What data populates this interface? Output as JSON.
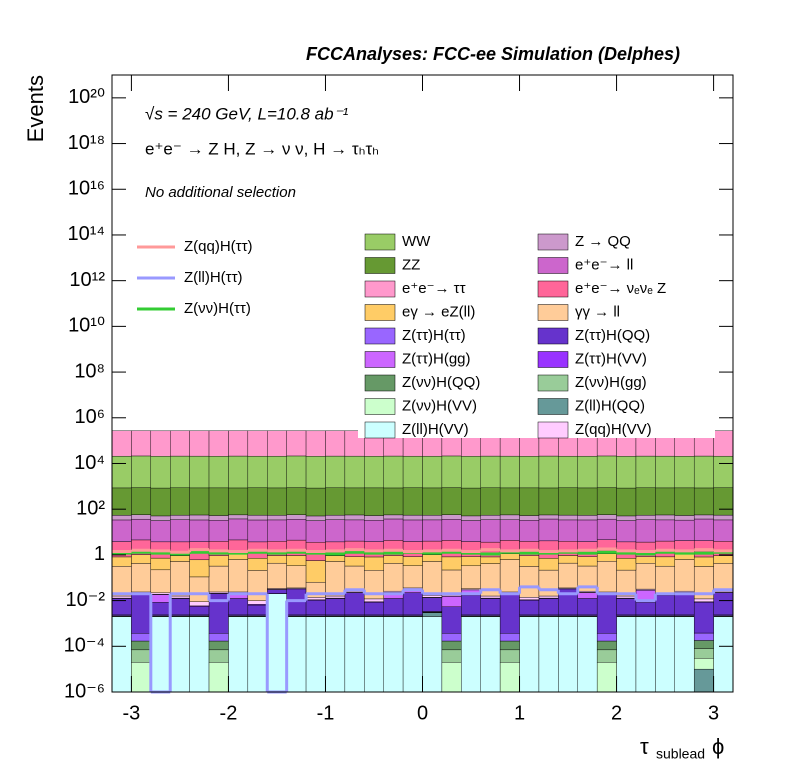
{
  "chart_data": {
    "type": "histogram",
    "title": "FCCAnalyses: FCC-ee Simulation (Delphes)",
    "annotations": [
      "√s = 240 GeV, L=10.8 ab⁻¹",
      "e⁺e⁻ → Z H, Z → ν ν, H → τₕτₕ",
      "No additional selection"
    ],
    "y_label": "Events",
    "x_label": [
      "τ",
      "sublead",
      "ϕ"
    ],
    "log_y": true,
    "stacked": true,
    "xlim": [
      -3.2,
      3.2
    ],
    "ylim": [
      1e-06,
      1e+21
    ],
    "xticks": [
      -3,
      -2,
      -1,
      0,
      1,
      2,
      3
    ],
    "yticks": [
      {
        "value": 1e-06,
        "label": "10⁻⁶"
      },
      {
        "value": 0.0001,
        "label": "10⁻⁴"
      },
      {
        "value": 0.01,
        "label": "10⁻²"
      },
      1,
      {
        "value": 100,
        "label": "10²"
      },
      {
        "value": 10000.0,
        "label": "10⁴"
      },
      {
        "value": 1000000.0,
        "label": "10⁶"
      },
      {
        "value": 100000000.0,
        "label": "10⁸"
      },
      {
        "value": 10000000000.0,
        "label": "10¹⁰"
      },
      {
        "value": 1000000000000.0,
        "label": "10¹²"
      },
      {
        "value": 100000000000000.0,
        "label": "10¹⁴"
      },
      {
        "value": 1e+16,
        "label": "10¹⁶"
      },
      {
        "value": 1e+18,
        "label": "10¹⁸"
      },
      {
        "value": 1e+20,
        "label": "10²⁰"
      }
    ],
    "bins": [
      -3.2,
      -3,
      -2.8,
      -2.6,
      -2.4,
      -2.2,
      -2,
      -1.8,
      -1.6,
      -1.4,
      -1.2,
      -1,
      -0.8,
      -0.6,
      -0.4,
      -0.2,
      0,
      0.2,
      0.4,
      0.6,
      0.8,
      1,
      1.2,
      1.4,
      1.6,
      1.8,
      2,
      2.2,
      2.4,
      2.6,
      2.8,
      3,
      3.2
    ],
    "series": [
      {
        "name": "Z(ll)H(VV)",
        "color": "#ccffff",
        "values": [
          0.002,
          0,
          0.002,
          0.002,
          0.002,
          0,
          0.002,
          0.002,
          0.02,
          0.002,
          0.002,
          0.002,
          0.002,
          0.002,
          0.002,
          0.002,
          0.002,
          0,
          0.002,
          0.002,
          0,
          0.002,
          0.002,
          0.002,
          0.002,
          0,
          0.002,
          0.002,
          0.002,
          0.002,
          0,
          0.002
        ]
      },
      {
        "name": "Z(ll)H(QQ)",
        "color": "#669999",
        "values": [
          0,
          0,
          0,
          0,
          0,
          0,
          0,
          0,
          0,
          0,
          1e-05,
          0,
          0,
          0,
          0,
          0,
          0.001,
          0,
          0,
          0,
          0,
          0,
          0,
          0,
          0,
          0,
          0,
          0,
          0,
          0,
          1e-05,
          0
        ]
      },
      {
        "name": "Z(νν)H(VV)",
        "color": "#ccffcc",
        "values": [
          2e-05,
          2e-05,
          2e-05,
          2e-05,
          2e-05,
          2e-05,
          2e-05,
          2e-05,
          2e-05,
          2e-05,
          2e-05,
          2e-05,
          2e-05,
          2e-05,
          2e-05,
          2e-05,
          2e-05,
          2e-05,
          2e-05,
          2e-05,
          2e-05,
          2e-05,
          2e-05,
          2e-05,
          2e-05,
          2e-05,
          2e-05,
          2e-05,
          2e-05,
          2e-05,
          2e-05,
          2e-05
        ]
      },
      {
        "name": "Z(νν)H(gg)",
        "color": "#99cc99",
        "values": [
          5e-05,
          5e-05,
          5e-05,
          5e-05,
          5e-05,
          5e-05,
          5e-05,
          5e-05,
          5e-05,
          5e-05,
          5e-05,
          5e-05,
          5e-05,
          5e-05,
          5e-05,
          5e-05,
          5e-05,
          5e-05,
          5e-05,
          5e-05,
          5e-05,
          5e-05,
          5e-05,
          5e-05,
          5e-05,
          5e-05,
          5e-05,
          5e-05,
          5e-05,
          5e-05,
          5e-05,
          5e-05
        ]
      },
      {
        "name": "Z(νν)H(QQ)",
        "color": "#669966",
        "values": [
          0.0001,
          0.0001,
          0.0001,
          0.0001,
          0.0001,
          0.0001,
          0.0001,
          0.0001,
          0.0001,
          0.0001,
          0.0001,
          0.0001,
          0.0001,
          0.0001,
          0.0001,
          0.0001,
          0.0001,
          0.0001,
          0.0001,
          0.0001,
          0.0001,
          0.0001,
          0.0001,
          0.0001,
          0.0001,
          0.0001,
          0.0001,
          0.0001,
          0.0001,
          0.0001,
          0.0001,
          0.0001
        ]
      },
      {
        "name": "Z(ττ)H(ττ)",
        "color": "#9966ff",
        "values": [
          0.0002,
          0.0002,
          0.0002,
          0.0002,
          0.0002,
          0.0002,
          0.0002,
          0.0002,
          0.0002,
          0.0002,
          0.0002,
          0.0002,
          0.0002,
          0.0002,
          0.0002,
          0.0002,
          0.0002,
          0.0002,
          0.0002,
          0.0002,
          0.0002,
          0.0002,
          0.0002,
          0.0002,
          0.0002,
          0.0002,
          0.0002,
          0.0002,
          0.0002,
          0.0002,
          0.0002,
          0.0002
        ]
      },
      {
        "name": "Z(ττ)H(QQ)",
        "color": "#6633cc",
        "values": [
          0.01,
          0.02,
          0.006,
          0.01,
          0.003,
          0.02,
          0.01,
          0.004,
          0.01,
          0.03,
          0.008,
          0.01,
          0.02,
          0.006,
          0.01,
          0.02,
          0.01,
          0.005,
          0.015,
          0.01,
          0.02,
          0.008,
          0.01,
          0.03,
          0.01,
          0.02,
          0.01,
          0.006,
          0.015,
          0.02,
          0.008,
          0.02
        ]
      },
      {
        "name": "Z(ττ)H(gg)",
        "color": "#cc66ff",
        "values": [
          0,
          0,
          0.01,
          0,
          0,
          0,
          0.008,
          0,
          0,
          0,
          0,
          0,
          0,
          0,
          0.01,
          0.01,
          0,
          0.01,
          0.012,
          0,
          0,
          0,
          0,
          0,
          0.01,
          0,
          0,
          0.02,
          0,
          0,
          0,
          0
        ]
      },
      {
        "name": "Z(ττ)H(VV)",
        "color": "#9933ff",
        "values": [
          0.0005,
          0.0005,
          0.0005,
          0.0005,
          0.0005,
          0.0005,
          0.0005,
          0.0005,
          0.0005,
          0.0005,
          0.0005,
          0.0005,
          0.0005,
          0.0005,
          0.0005,
          0.0005,
          0.0005,
          0.0005,
          0.0005,
          0.0005,
          0.0005,
          0.0005,
          0.0005,
          0.0005,
          0.0005,
          0.0005,
          0.0005,
          0.0005,
          0.0005,
          0.0005,
          0.0005,
          0.0005
        ]
      },
      {
        "name": "Z(qq)H(VV)",
        "color": "#ffccff",
        "values": [
          0.003,
          0.003,
          0.003,
          0.003,
          0.003,
          0.003,
          0.003,
          0.003,
          0.003,
          0.003,
          0.003,
          0.003,
          0.003,
          0.003,
          0.003,
          0.003,
          0.003,
          0.003,
          0.003,
          0.003,
          0.003,
          0.003,
          0.003,
          0.003,
          0.003,
          0.003,
          0.003,
          0.003,
          0.003,
          0.003,
          0.003,
          0.003
        ]
      },
      {
        "name": "γγ → ll",
        "color": "#ffcc99",
        "values": [
          0.3,
          0.4,
          0.2,
          0.5,
          0.1,
          0.3,
          0.6,
          0.2,
          0.4,
          0.3,
          0.05,
          0.5,
          0.3,
          0.2,
          0.4,
          0.3,
          0.5,
          0.2,
          0.3,
          0.4,
          0.6,
          0.3,
          0.2,
          0.4,
          0.3,
          0.5,
          0.2,
          0.4,
          0.3,
          0.6,
          0.3,
          0.4
        ]
      },
      {
        "name": "eγ → eZ(ll)",
        "color": "#ffcc66",
        "values": [
          0.5,
          0.6,
          0.5,
          0.4,
          0.5,
          0.6,
          0.5,
          0.5,
          0.5,
          0.6,
          0.5,
          0.4,
          0.5,
          0.6,
          0.5,
          0.5,
          0.5,
          0.6,
          0.5,
          0.4,
          0.5,
          0.6,
          0.5,
          0.5,
          0.5,
          0.6,
          0.5,
          0.4,
          0.5,
          0.6,
          0.5,
          0.5
        ]
      },
      {
        "name": "e⁺e⁻→ νₑνₑ Z",
        "color": "#ff6699",
        "values": [
          3,
          3.5,
          3,
          2.8,
          3.2,
          3,
          3.4,
          3,
          3,
          3.5,
          3,
          2.8,
          3.2,
          3,
          3.4,
          3,
          3,
          3.5,
          3,
          2.8,
          3.2,
          3,
          3.4,
          3,
          3,
          3.5,
          3,
          2.8,
          3.2,
          3,
          3.4,
          3
        ]
      },
      {
        "name": "e⁺e⁻→ ll",
        "color": "#cc66cc",
        "values": [
          30,
          32,
          28,
          31,
          30,
          29,
          33,
          30,
          30,
          32,
          28,
          31,
          30,
          29,
          33,
          30,
          30,
          32,
          28,
          31,
          30,
          29,
          33,
          30,
          30,
          32,
          28,
          31,
          30,
          29,
          33,
          30
        ]
      },
      {
        "name": "Z → QQ",
        "color": "#cc99cc",
        "values": [
          20,
          21,
          19,
          20,
          22,
          20,
          19,
          21,
          20,
          21,
          19,
          20,
          22,
          20,
          19,
          21,
          20,
          21,
          19,
          20,
          22,
          20,
          19,
          21,
          20,
          21,
          19,
          20,
          22,
          20,
          19,
          21
        ]
      },
      {
        "name": "ZZ",
        "color": "#669933",
        "values": [
          800,
          820,
          790,
          810,
          800,
          805,
          795,
          815,
          800,
          820,
          790,
          810,
          800,
          805,
          795,
          815,
          800,
          820,
          790,
          810,
          800,
          805,
          795,
          815,
          800,
          820,
          790,
          810,
          800,
          805,
          795,
          815
        ]
      },
      {
        "name": "WW",
        "color": "#99cc66",
        "values": [
          20000,
          20500,
          19800,
          20200,
          20100,
          19900,
          20300,
          20000,
          20000,
          20500,
          19800,
          20200,
          20100,
          19900,
          20300,
          20000,
          20000,
          20500,
          19800,
          20200,
          20100,
          19900,
          20300,
          20000,
          20000,
          20500,
          19800,
          20200,
          20100,
          19900,
          20300,
          20000
        ]
      },
      {
        "name": "e⁺e⁻→ ττ",
        "color": "#ff99cc",
        "values": [
          250000,
          252000,
          248000,
          251000,
          249000,
          250500,
          251500,
          249500,
          250000,
          252000,
          248000,
          251000,
          249000,
          250500,
          251500,
          249500,
          250000,
          252000,
          248000,
          251000,
          249000,
          250500,
          251500,
          249500,
          250000,
          252000,
          248000,
          251000,
          249000,
          250500,
          251500,
          249500
        ]
      }
    ],
    "lines": [
      {
        "name": "Z(qq)H(ττ)",
        "color": "#ff9999",
        "values": [
          1.4,
          1.6,
          1.5,
          1.3,
          1.7,
          1.5,
          1.4,
          1.6,
          1.5,
          1.6,
          1.4,
          1.5,
          1.7,
          1.5,
          1.6,
          1.4,
          1.5,
          1.6,
          1.4,
          1.7,
          1.5,
          1.6,
          1.4,
          1.5,
          1.6,
          1.8,
          1.5,
          1.4,
          1.6,
          1.5,
          1.7,
          1.5
        ]
      },
      {
        "name": "Z(ll)H(ττ)",
        "color": "#9999ff",
        "values": [
          0.02,
          0.02,
          0,
          0.02,
          0.02,
          0.01,
          0.02,
          0.02,
          0,
          0.01,
          0.02,
          0.02,
          0.03,
          0.02,
          0.02,
          0.03,
          0.02,
          0.02,
          0.02,
          0.03,
          0.02,
          0.04,
          0.03,
          0.02,
          0.04,
          0.02,
          0.02,
          0.01,
          0.02,
          0.02,
          0.02,
          0.03
        ]
      },
      {
        "name": "Z(νν)H(ττ)",
        "color": "#33cc33",
        "values": [
          1.2,
          1.3,
          1.2,
          1.1,
          1.3,
          1.2,
          1.2,
          1.3,
          1.2,
          1.3,
          1.2,
          1.1,
          1.3,
          1.2,
          1.2,
          1.3,
          1.2,
          1.3,
          1.2,
          1.1,
          1.3,
          1.2,
          1.2,
          1.3,
          1.2,
          1.3,
          1.2,
          1.1,
          1.3,
          1.2,
          1.2,
          1.3
        ]
      }
    ]
  }
}
